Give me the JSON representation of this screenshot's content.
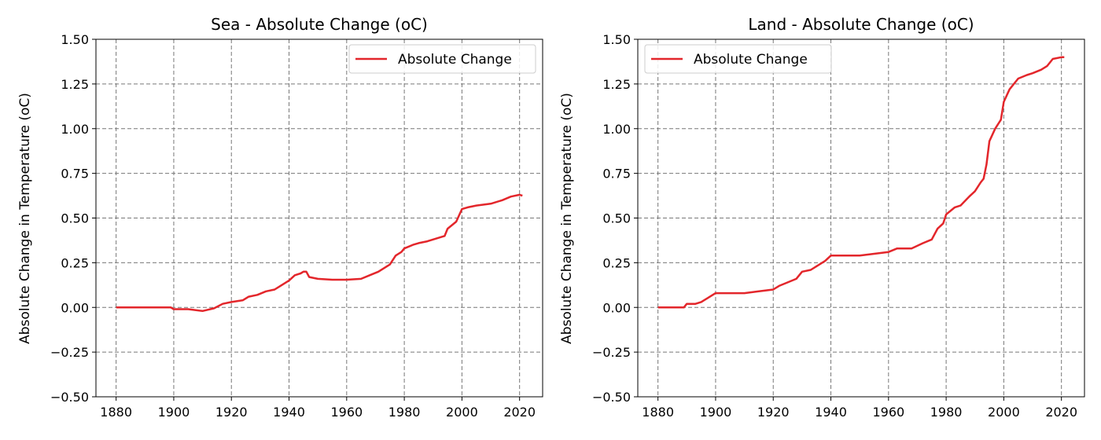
{
  "chart_data": [
    {
      "type": "line",
      "title": "Sea - Absolute Change (oC)",
      "xlabel": "",
      "ylabel": "Absolute Change in Temperature (oC)",
      "xlim": [
        1873,
        2028
      ],
      "ylim": [
        -0.5,
        1.5
      ],
      "xticks": [
        1880,
        1900,
        1920,
        1940,
        1960,
        1980,
        2000,
        2020
      ],
      "yticks": [
        -0.5,
        -0.25,
        0.0,
        0.25,
        0.5,
        0.75,
        1.0,
        1.25,
        1.5
      ],
      "xtick_labels": [
        "1880",
        "1900",
        "1920",
        "1940",
        "1960",
        "1980",
        "2000",
        "2020"
      ],
      "ytick_labels": [
        "−0.50",
        "−0.25",
        "0.00",
        "0.25",
        "0.50",
        "0.75",
        "1.00",
        "1.25",
        "1.50"
      ],
      "grid": true,
      "legend_position": "upper right",
      "color": "#e3262b",
      "series": [
        {
          "name": "Absolute Change",
          "x": [
            1880,
            1890,
            1899,
            1900,
            1905,
            1910,
            1914,
            1917,
            1920,
            1924,
            1926,
            1929,
            1932,
            1935,
            1937,
            1940,
            1942,
            1944,
            1945,
            1946,
            1947,
            1950,
            1955,
            1960,
            1965,
            1968,
            1971,
            1975,
            1977,
            1979,
            1980,
            1983,
            1985,
            1988,
            1990,
            1994,
            1995,
            1998,
            2000,
            2002,
            2005,
            2010,
            2014,
            2017,
            2020,
            2021
          ],
          "y": [
            0.0,
            0.0,
            0.0,
            -0.01,
            -0.01,
            -0.02,
            -0.005,
            0.02,
            0.03,
            0.04,
            0.06,
            0.07,
            0.09,
            0.1,
            0.12,
            0.15,
            0.18,
            0.19,
            0.2,
            0.2,
            0.17,
            0.16,
            0.155,
            0.155,
            0.16,
            0.18,
            0.2,
            0.24,
            0.29,
            0.31,
            0.33,
            0.35,
            0.36,
            0.37,
            0.38,
            0.4,
            0.44,
            0.48,
            0.55,
            0.56,
            0.57,
            0.58,
            0.6,
            0.62,
            0.63,
            0.625
          ]
        }
      ]
    },
    {
      "type": "line",
      "title": "Land - Absolute Change (oC)",
      "xlabel": "",
      "ylabel": "Absolute Change in Temperature (oC)",
      "xlim": [
        1873,
        2028
      ],
      "ylim": [
        -0.5,
        1.5
      ],
      "xticks": [
        1880,
        1900,
        1920,
        1940,
        1960,
        1980,
        2000,
        2020
      ],
      "yticks": [
        -0.5,
        -0.25,
        0.0,
        0.25,
        0.5,
        0.75,
        1.0,
        1.25,
        1.5
      ],
      "xtick_labels": [
        "1880",
        "1900",
        "1920",
        "1940",
        "1960",
        "1980",
        "2000",
        "2020"
      ],
      "ytick_labels": [
        "−0.50",
        "−0.25",
        "0.00",
        "0.25",
        "0.50",
        "0.75",
        "1.00",
        "1.25",
        "1.50"
      ],
      "grid": true,
      "legend_position": "upper left",
      "color": "#e3262b",
      "series": [
        {
          "name": "Absolute Change",
          "x": [
            1880,
            1889,
            1890,
            1893,
            1895,
            1897,
            1900,
            1905,
            1910,
            1915,
            1920,
            1922,
            1925,
            1928,
            1930,
            1933,
            1935,
            1938,
            1940,
            1942,
            1945,
            1950,
            1955,
            1960,
            1963,
            1965,
            1968,
            1972,
            1975,
            1977,
            1979,
            1980,
            1983,
            1985,
            1988,
            1990,
            1992,
            1993,
            1994,
            1995,
            1997,
            1999,
            2000,
            2002,
            2005,
            2008,
            2010,
            2013,
            2015,
            2017,
            2020,
            2021
          ],
          "y": [
            0.0,
            0.0,
            0.02,
            0.02,
            0.03,
            0.05,
            0.08,
            0.08,
            0.08,
            0.09,
            0.1,
            0.12,
            0.14,
            0.16,
            0.2,
            0.21,
            0.23,
            0.26,
            0.29,
            0.29,
            0.29,
            0.29,
            0.3,
            0.31,
            0.33,
            0.33,
            0.33,
            0.36,
            0.38,
            0.44,
            0.47,
            0.52,
            0.56,
            0.57,
            0.62,
            0.65,
            0.7,
            0.72,
            0.8,
            0.93,
            1.0,
            1.05,
            1.15,
            1.22,
            1.28,
            1.3,
            1.31,
            1.33,
            1.35,
            1.39,
            1.4,
            1.4
          ]
        }
      ]
    }
  ]
}
